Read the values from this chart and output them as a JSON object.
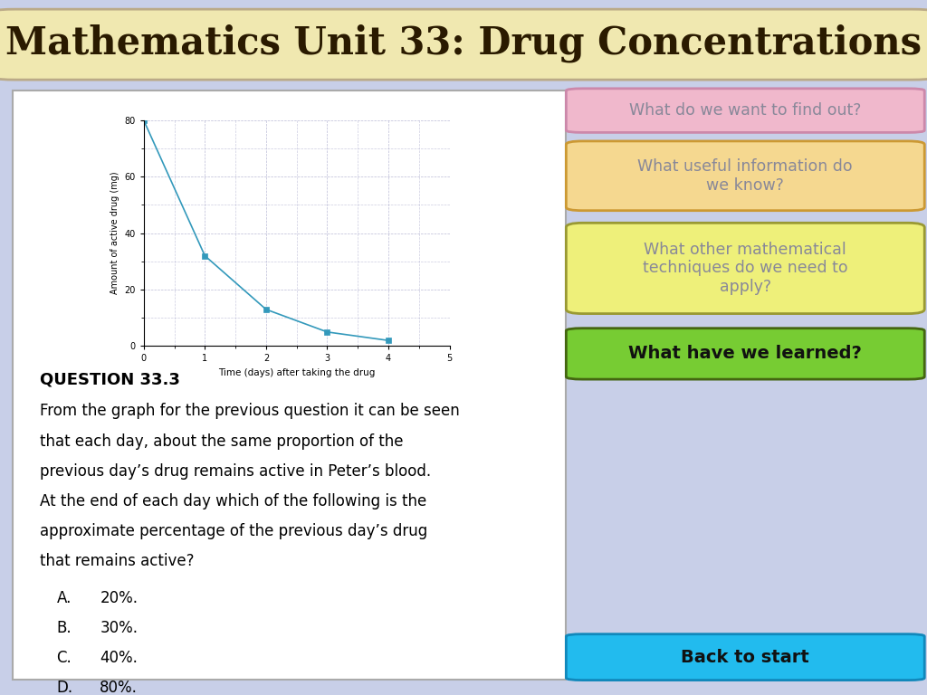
{
  "title": "Mathematics Unit 33: Drug Concentrations",
  "title_bg_color": "#f0e8b0",
  "title_text_color": "#2a1a00",
  "page_bg_color": "#c8cfe8",
  "left_panel_bg": "#ffffff",
  "graph_x": [
    0,
    1,
    2,
    3,
    4
  ],
  "graph_y": [
    80,
    32,
    13,
    5,
    2
  ],
  "graph_xlabel": "Time (days) after taking the drug",
  "graph_ylabel": "Amount of active drug (mg)",
  "graph_xlim": [
    0,
    5
  ],
  "graph_ylim": [
    0,
    80
  ],
  "graph_xticks": [
    0,
    1,
    2,
    3,
    4,
    5
  ],
  "graph_yticks": [
    0,
    20,
    40,
    60,
    80
  ],
  "line_color": "#3399bb",
  "marker_color": "#3399bb",
  "question_title": "QUESTION 33.3",
  "question_lines": [
    "From the graph for the previous question it can be seen",
    "that each day, about the same proportion of the",
    "previous day’s drug remains active in Peter’s blood.",
    "At the end of each day which of the following is the",
    "approximate percentage of the previous day’s drug",
    "that remains active?"
  ],
  "options": [
    [
      "A.",
      "20%."
    ],
    [
      "B.",
      "30%."
    ],
    [
      "C.",
      "40%."
    ],
    [
      "D.",
      "80%."
    ]
  ],
  "btn1_text": "What do we want to find out?",
  "btn1_bg": "#f0b8cc",
  "btn1_text_color": "#888899",
  "btn2_text": "What useful information do\nwe know?",
  "btn2_bg": "#f5d890",
  "btn2_text_color": "#888899",
  "btn3_text": "What other mathematical\ntechniques do we need to\napply?",
  "btn3_bg": "#eef07a",
  "btn3_text_color": "#888899",
  "btn4_text": "What have we learned?",
  "btn4_bg": "#77cc33",
  "btn4_text_color": "#111111",
  "btn5_text": "Back to start",
  "btn5_bg": "#22bbee",
  "btn5_text_color": "#111111"
}
